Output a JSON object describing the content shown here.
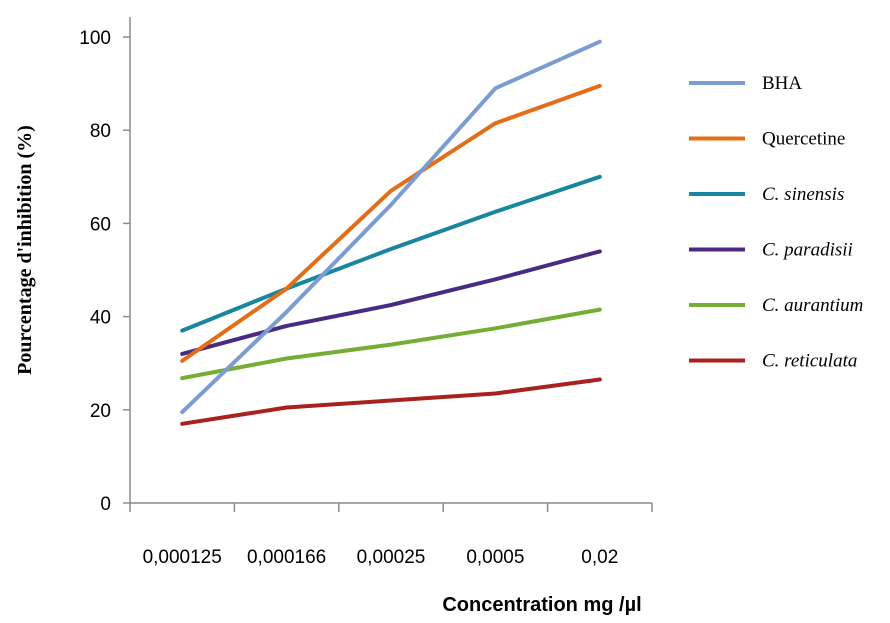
{
  "chart_data": {
    "type": "line",
    "title": "",
    "xlabel": "Concentration mg /µl",
    "ylabel": "Pourcentage d'inhibition (%)",
    "categories": [
      "0,000125",
      "0,000166",
      "0,00025",
      "0,0005",
      "0,02"
    ],
    "ylim": [
      0,
      100
    ],
    "yticks": [
      0,
      20,
      40,
      60,
      80,
      100
    ],
    "grid": false,
    "legend_position": "right",
    "series": [
      {
        "name": "BHA",
        "italic": false,
        "color": "#7b9cd2",
        "values": [
          19.5,
          41,
          64,
          89,
          99
        ]
      },
      {
        "name": "Quercetine",
        "italic": false,
        "color": "#e46d18",
        "values": [
          30.5,
          46,
          67,
          81.5,
          89.5
        ]
      },
      {
        "name": "C. sinensis",
        "italic": true,
        "color": "#17869e",
        "values": [
          37,
          46,
          54.5,
          62.5,
          70
        ]
      },
      {
        "name": "C. paradisii",
        "italic": true,
        "color": "#4b2a84",
        "values": [
          32,
          38,
          42.5,
          48,
          54
        ]
      },
      {
        "name": "C. aurantium",
        "italic": true,
        "color": "#76ad34",
        "values": [
          26.8,
          31,
          34,
          37.5,
          41.5
        ]
      },
      {
        "name": "C. reticulata",
        "italic": true,
        "color": "#a8211f",
        "values": [
          17,
          20.5,
          22,
          23.5,
          26.5
        ]
      }
    ]
  }
}
